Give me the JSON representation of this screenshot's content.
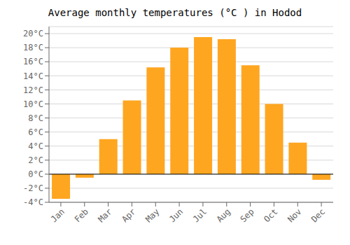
{
  "chart_data": {
    "type": "bar",
    "title": "Average monthly temperatures (°C ) in Hodod",
    "categories": [
      "Jan",
      "Feb",
      "Mar",
      "Apr",
      "May",
      "Jun",
      "Jul",
      "Aug",
      "Sep",
      "Oct",
      "Nov",
      "Dec"
    ],
    "values": [
      -3.5,
      -0.5,
      5.0,
      10.5,
      15.2,
      18.0,
      19.5,
      19.2,
      15.5,
      10.0,
      4.5,
      -0.8
    ],
    "color": "#FFA620",
    "ylim": [
      -4,
      21
    ],
    "yticks": [
      {
        "value": -4,
        "label": "-4°C"
      },
      {
        "value": -2,
        "label": "-2°C"
      },
      {
        "value": 0,
        "label": "0°C"
      },
      {
        "value": 2,
        "label": "2°C"
      },
      {
        "value": 4,
        "label": "4°C"
      },
      {
        "value": 6,
        "label": "6°C"
      },
      {
        "value": 8,
        "label": "8°C"
      },
      {
        "value": 10,
        "label": "10°C"
      },
      {
        "value": 12,
        "label": "12°C"
      },
      {
        "value": 14,
        "label": "14°C"
      },
      {
        "value": 16,
        "label": "16°C"
      },
      {
        "value": 18,
        "label": "18°C"
      },
      {
        "value": 20,
        "label": "20°C"
      }
    ],
    "grid": true
  }
}
